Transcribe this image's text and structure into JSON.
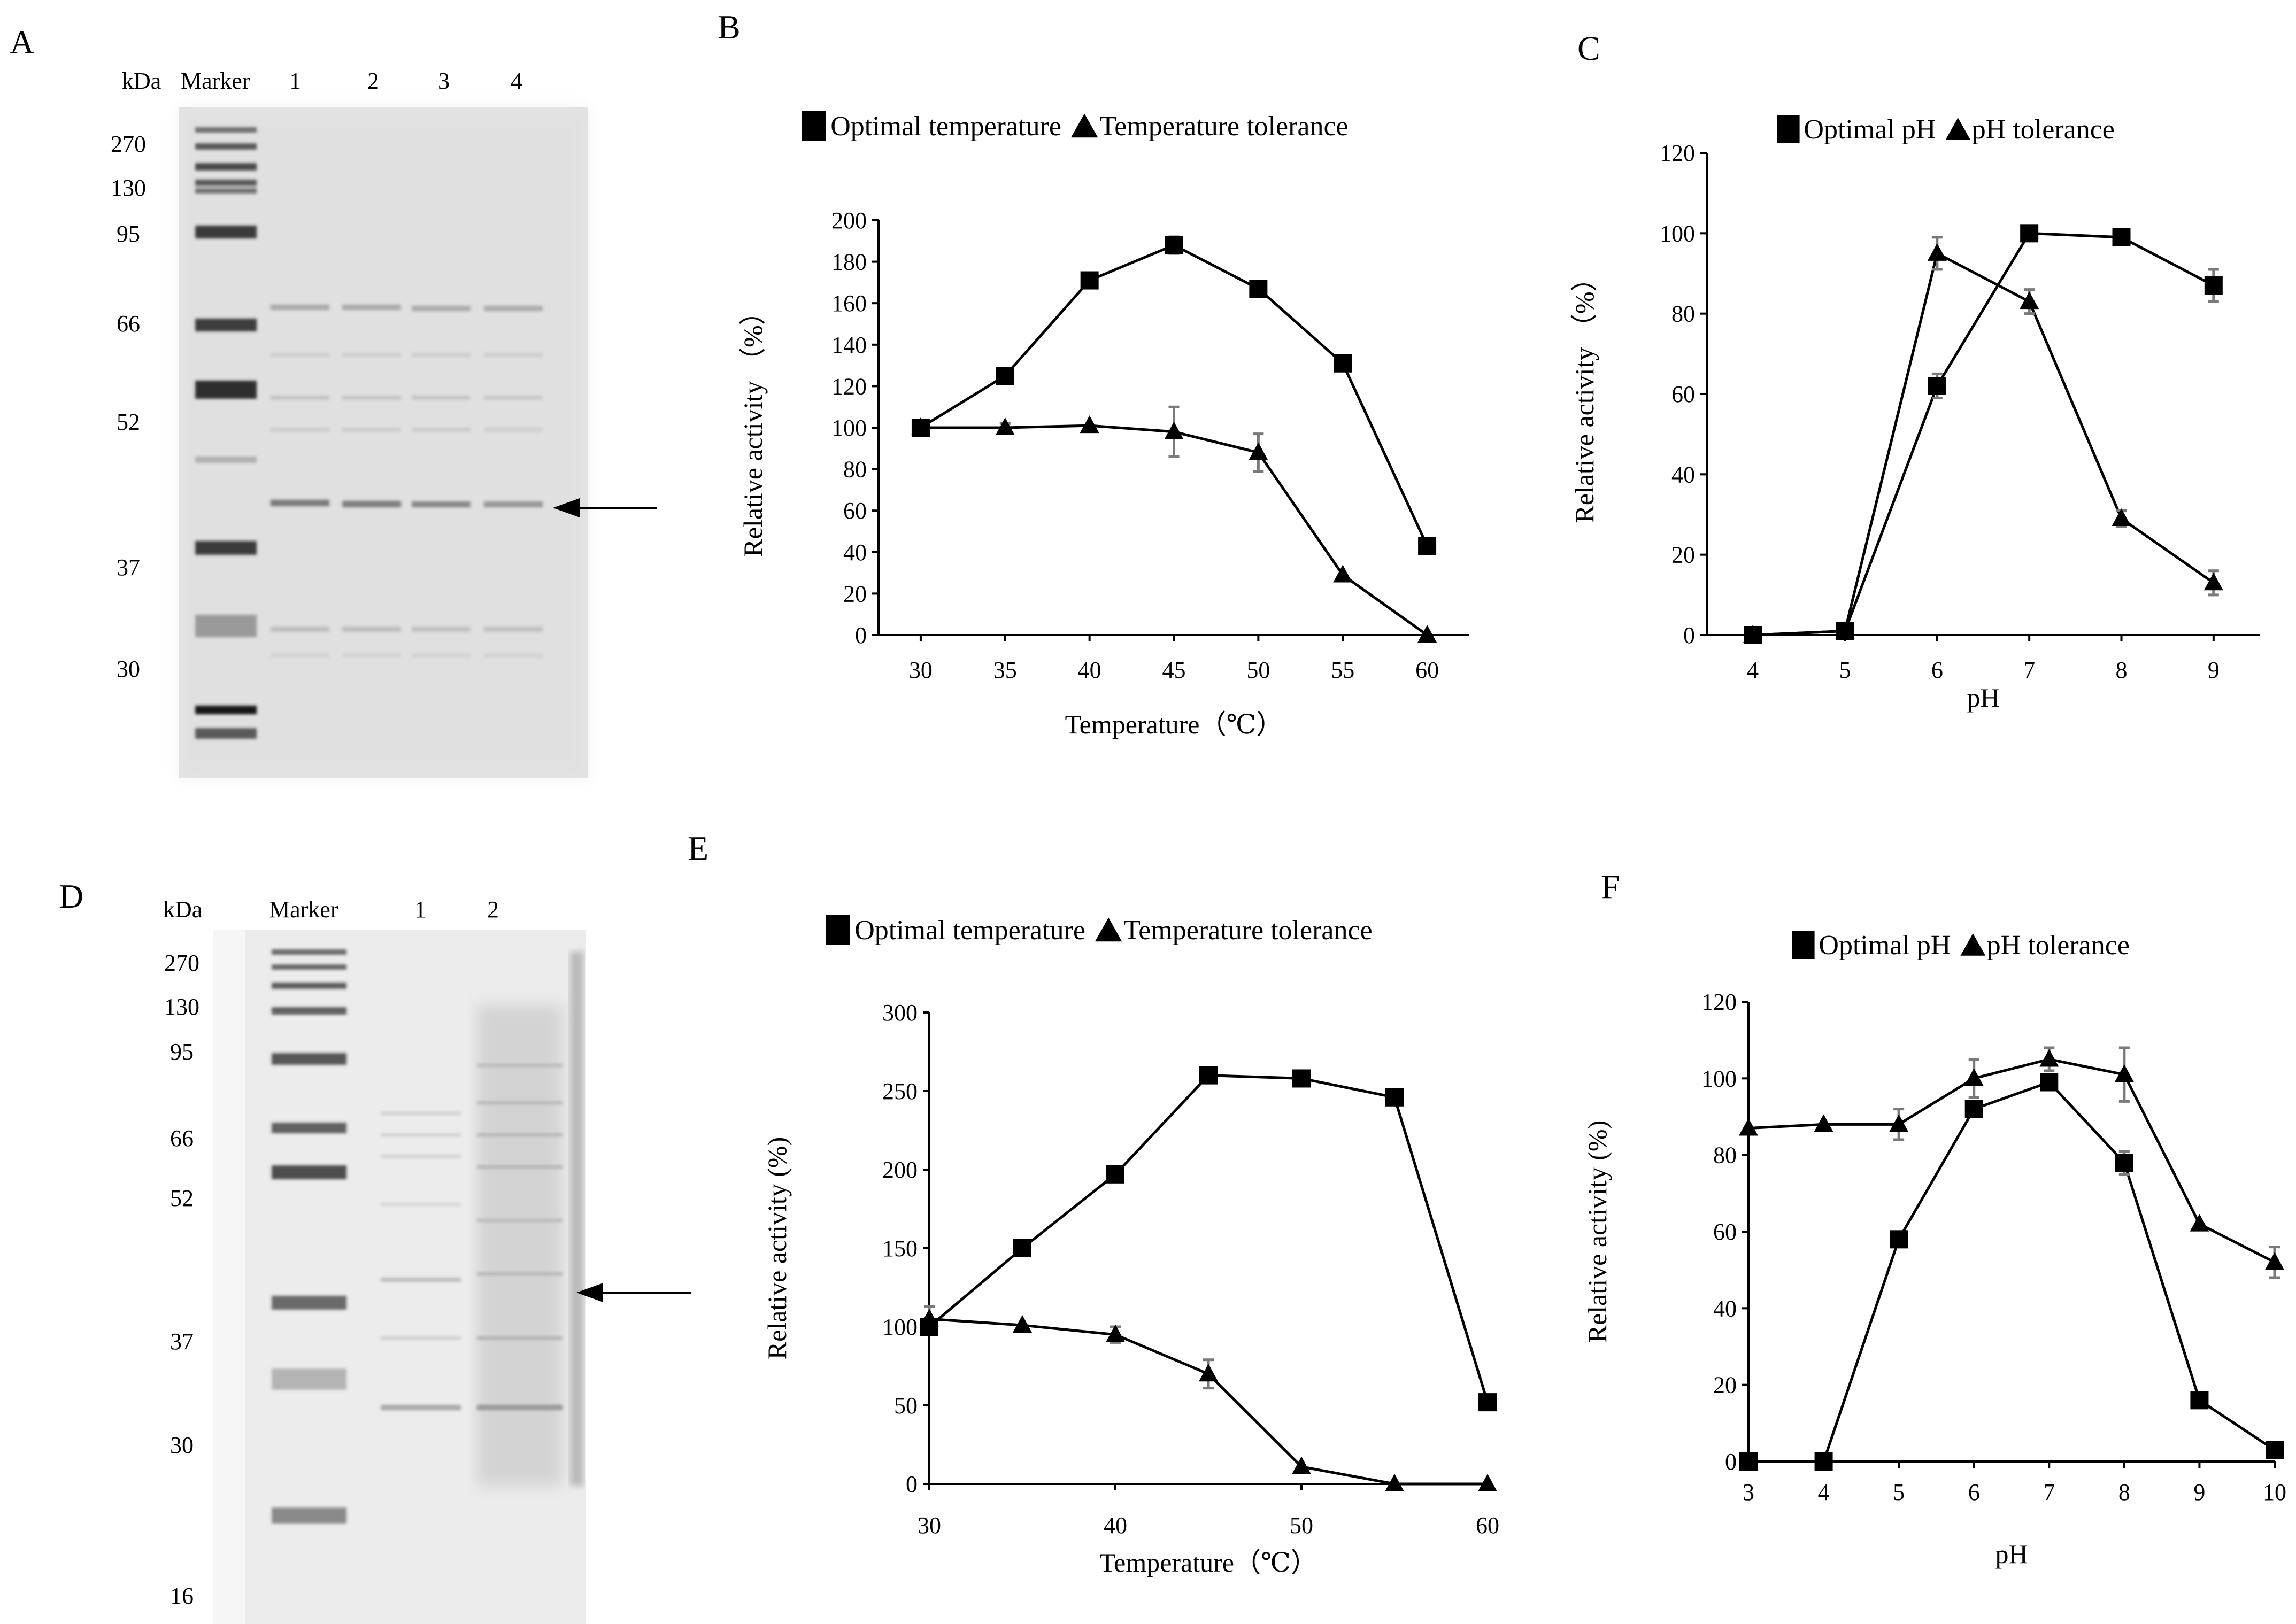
{
  "panels": {
    "A": {
      "letter": "A",
      "header": {
        "kda": "kDa",
        "marker": "Marker",
        "lanes": [
          "1",
          "2",
          "3",
          "4"
        ]
      },
      "markers": [
        "270",
        "130",
        "95",
        "66",
        "52",
        "37",
        "30"
      ]
    },
    "D": {
      "letter": "D",
      "header": {
        "kda": "kDa",
        "marker": "Marker",
        "lanes": [
          "1",
          "2"
        ]
      },
      "markers": [
        "270",
        "130",
        "95",
        "66",
        "52",
        "37",
        "30",
        "16"
      ]
    }
  },
  "colors": {
    "line": "#000000",
    "error_bar": "#7a7a7a",
    "background": "#ffffff"
  },
  "chart_data": [
    {
      "id": "B",
      "letter": "B",
      "type": "line",
      "xlabel": "Temperature（℃）",
      "ylabel": "Relative activity （%）",
      "x": [
        30,
        35,
        40,
        45,
        50,
        55,
        60
      ],
      "xticks": [
        "30",
        "35",
        "40",
        "45",
        "50",
        "55",
        "60"
      ],
      "ylim": [
        0,
        200
      ],
      "yticks": [
        "0",
        "20",
        "40",
        "60",
        "80",
        "100",
        "120",
        "140",
        "160",
        "180",
        "200"
      ],
      "legend_position": "top",
      "series": [
        {
          "name": "Optimal temperature",
          "marker": "square",
          "values": [
            100,
            125,
            171,
            188,
            167,
            131,
            43
          ],
          "errors": [
            0,
            0,
            0,
            4,
            0,
            0,
            0
          ]
        },
        {
          "name": "Temperature tolerance",
          "marker": "triangle",
          "values": [
            100,
            100,
            101,
            98,
            88,
            29,
            0
          ],
          "errors": [
            0,
            2,
            0,
            12,
            9,
            0,
            0
          ]
        }
      ]
    },
    {
      "id": "C",
      "letter": "C",
      "type": "line",
      "xlabel": "pH",
      "ylabel": "Relative activity （%）",
      "x": [
        4,
        5,
        6,
        7,
        8,
        9
      ],
      "xticks": [
        "4",
        "5",
        "6",
        "7",
        "8",
        "9"
      ],
      "ylim": [
        0,
        120
      ],
      "yticks": [
        "0",
        "20",
        "40",
        "60",
        "80",
        "100",
        "120"
      ],
      "legend_position": "top",
      "series": [
        {
          "name": "Optimal pH",
          "marker": "square",
          "values": [
            0,
            1,
            62,
            100,
            99,
            87
          ],
          "errors": [
            0,
            0,
            3,
            0,
            0,
            4
          ]
        },
        {
          "name": "pH tolerance",
          "marker": "triangle",
          "values": [
            0,
            1,
            95,
            83,
            29,
            13
          ],
          "errors": [
            0,
            0,
            4,
            3,
            2,
            3
          ]
        }
      ]
    },
    {
      "id": "E",
      "letter": "E",
      "type": "line",
      "xlabel": "Temperature（℃）",
      "ylabel": "Relative activity (%)",
      "x": [
        30,
        35,
        40,
        45,
        50,
        55,
        60
      ],
      "xticks": [
        "30",
        "40",
        "50",
        "60"
      ],
      "xtick_values": [
        30,
        40,
        50,
        60
      ],
      "ylim": [
        0,
        300
      ],
      "yticks": [
        "0",
        "50",
        "100",
        "150",
        "200",
        "250",
        "300"
      ],
      "legend_position": "top",
      "series": [
        {
          "name": "Optimal temperature",
          "marker": "square",
          "values": [
            100,
            150,
            197,
            260,
            258,
            246,
            52
          ],
          "errors": [
            0,
            0,
            0,
            0,
            0,
            0,
            0
          ]
        },
        {
          "name": "Temperature tolerance",
          "marker": "triangle",
          "values": [
            105,
            101,
            95,
            70,
            11,
            0,
            0
          ],
          "errors": [
            8,
            0,
            5,
            9,
            0,
            0,
            0
          ]
        }
      ]
    },
    {
      "id": "F",
      "letter": "F",
      "type": "line",
      "xlabel": "pH",
      "ylabel": "Relative activity (%)",
      "x": [
        3,
        4,
        5,
        6,
        7,
        8,
        9,
        10
      ],
      "xticks": [
        "3",
        "4",
        "5",
        "6",
        "7",
        "8",
        "9",
        "10"
      ],
      "ylim": [
        0,
        120
      ],
      "yticks": [
        "0",
        "20",
        "40",
        "60",
        "80",
        "100",
        "120"
      ],
      "legend_position": "top",
      "series": [
        {
          "name": "Optimal pH",
          "marker": "square",
          "values": [
            0,
            0,
            58,
            92,
            99,
            78,
            16,
            3
          ],
          "errors": [
            0,
            0,
            0,
            0,
            0,
            3,
            0,
            0
          ]
        },
        {
          "name": "pH tolerance",
          "marker": "triangle",
          "values": [
            87,
            88,
            88,
            100,
            105,
            101,
            62,
            52
          ],
          "errors": [
            0,
            0,
            4,
            5,
            3,
            7,
            0,
            4
          ]
        }
      ]
    }
  ]
}
